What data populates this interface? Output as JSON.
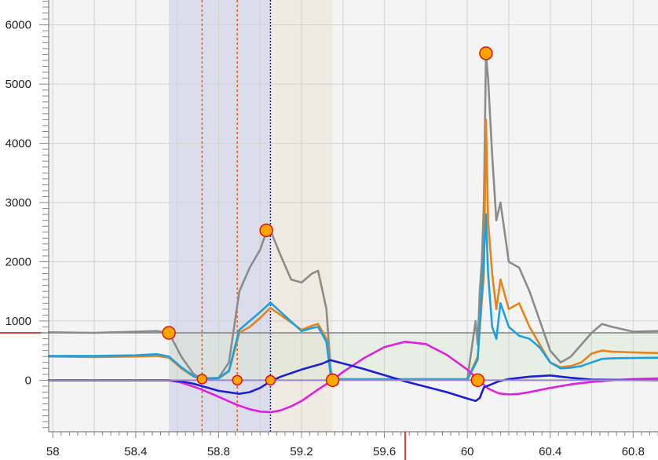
{
  "chart_data": {
    "type": "line",
    "title": "",
    "xlabel": "",
    "ylabel": "",
    "xlim": [
      57.98,
      60.92
    ],
    "ylim": [
      -870,
      6420
    ],
    "grid": true,
    "legend": "none",
    "x_ticks": [
      58,
      58.2,
      58.4,
      58.6,
      58.8,
      59,
      59.2,
      59.4,
      59.6,
      59.8,
      60,
      60.2,
      60.4,
      60.6,
      60.8
    ],
    "x_tick_labels": [
      {
        "x": 58,
        "label": "58"
      },
      {
        "x": 58.4,
        "label": "58.4"
      },
      {
        "x": 58.8,
        "label": "58.8"
      },
      {
        "x": 59.2,
        "label": "59.2"
      },
      {
        "x": 59.6,
        "label": "59.6"
      },
      {
        "x": 60,
        "label": "60"
      },
      {
        "x": 60.4,
        "label": "60.4"
      },
      {
        "x": 60.8,
        "label": "60.8"
      }
    ],
    "y_ticks": [
      0,
      1000,
      2000,
      3000,
      4000,
      5000,
      6000
    ],
    "y_tick_labels": [
      {
        "y": 0,
        "label": "0"
      },
      {
        "y": 1000,
        "label": "1000"
      },
      {
        "y": 2000,
        "label": "2000"
      },
      {
        "y": 3000,
        "label": "3000"
      },
      {
        "y": 4000,
        "label": "4000"
      },
      {
        "y": 5000,
        "label": "5000"
      },
      {
        "y": 6000,
        "label": "6000"
      }
    ],
    "regions": [
      {
        "x0": 58.56,
        "x1": 59.05,
        "y0": -870,
        "y1": 6420,
        "color": "#c9cbe6",
        "opacity": 0.55
      },
      {
        "x0": 59.05,
        "x1": 59.35,
        "y0": -870,
        "y1": 6420,
        "color": "#ece3d6",
        "opacity": 0.6
      },
      {
        "x0": 58.56,
        "x1": 60.92,
        "y0": 0,
        "y1": 800,
        "color": "#d6e6cf",
        "opacity": 0.45
      }
    ],
    "vlines": [
      {
        "x": 58.72,
        "color": "#e06020",
        "dash": "3,3"
      },
      {
        "x": 58.89,
        "color": "#e06020",
        "dash": "3,3"
      },
      {
        "x": 59.05,
        "color": "#1a237e",
        "dash": "2,2"
      }
    ],
    "hline": {
      "y": 800,
      "color": "#e04040"
    },
    "x_marker": {
      "x": 59.7,
      "color": "#e04040"
    },
    "series": [
      {
        "color": "#8c8c8c",
        "x": [
          57.98,
          58.2,
          58.4,
          58.5,
          58.56,
          58.62,
          58.68,
          58.72,
          58.8,
          58.85,
          58.9,
          58.95,
          59.0,
          59.03,
          59.05,
          59.1,
          59.15,
          59.2,
          59.25,
          59.28,
          59.32,
          59.34,
          59.35,
          59.6,
          60.0,
          60.04,
          60.05,
          60.06,
          60.07,
          60.08,
          60.09,
          60.1,
          60.12,
          60.14,
          60.16,
          60.2,
          60.25,
          60.3,
          60.35,
          60.4,
          60.45,
          60.5,
          60.55,
          60.6,
          60.65,
          60.7,
          60.8,
          60.92
        ],
        "y": [
          810,
          800,
          820,
          830,
          800,
          400,
          100,
          30,
          40,
          300,
          1500,
          1900,
          2200,
          2500,
          2530,
          2100,
          1700,
          1650,
          1800,
          1850,
          1200,
          200,
          20,
          20,
          20,
          1000,
          600,
          1500,
          2000,
          3000,
          5500,
          5100,
          3800,
          2700,
          3000,
          2000,
          1900,
          1500,
          1000,
          500,
          300,
          400,
          600,
          800,
          950,
          900,
          820,
          830
        ]
      },
      {
        "color": "#e8831b",
        "x": [
          57.98,
          58.2,
          58.4,
          58.5,
          58.56,
          58.62,
          58.68,
          58.72,
          58.8,
          58.85,
          58.9,
          58.95,
          59.0,
          59.05,
          59.1,
          59.2,
          59.25,
          59.28,
          59.32,
          59.34,
          59.35,
          60.0,
          60.05,
          60.08,
          60.09,
          60.1,
          60.12,
          60.14,
          60.16,
          60.2,
          60.25,
          60.3,
          60.35,
          60.4,
          60.45,
          60.5,
          60.55,
          60.6,
          60.65,
          60.7,
          60.8,
          60.92
        ],
        "y": [
          400,
          390,
          400,
          410,
          380,
          200,
          60,
          20,
          30,
          150,
          800,
          900,
          1050,
          1220,
          1100,
          850,
          920,
          950,
          700,
          100,
          10,
          10,
          400,
          1800,
          4400,
          2700,
          1800,
          1200,
          1700,
          1200,
          1300,
          900,
          600,
          300,
          220,
          240,
          300,
          450,
          500,
          480,
          470,
          460
        ]
      },
      {
        "color": "#1ba1e2",
        "x": [
          57.98,
          58.2,
          58.4,
          58.5,
          58.56,
          58.62,
          58.68,
          58.72,
          58.8,
          58.85,
          58.9,
          58.95,
          59.0,
          59.05,
          59.1,
          59.2,
          59.25,
          59.28,
          59.32,
          59.34,
          59.35,
          60.0,
          60.05,
          60.08,
          60.09,
          60.1,
          60.12,
          60.14,
          60.16,
          60.2,
          60.25,
          60.3,
          60.35,
          60.4,
          60.45,
          60.5,
          60.55,
          60.6,
          60.65,
          60.7,
          60.8,
          60.92
        ],
        "y": [
          410,
          410,
          420,
          440,
          400,
          220,
          70,
          25,
          35,
          160,
          850,
          1000,
          1150,
          1310,
          1150,
          830,
          880,
          900,
          650,
          100,
          10,
          10,
          350,
          2100,
          2800,
          1800,
          900,
          700,
          1300,
          900,
          750,
          700,
          550,
          300,
          200,
          210,
          240,
          300,
          360,
          370,
          375,
          380
        ]
      },
      {
        "color": "#e020e0",
        "x": [
          57.98,
          58.5,
          58.56,
          58.62,
          58.68,
          58.72,
          58.8,
          58.89,
          58.95,
          59.0,
          59.05,
          59.1,
          59.15,
          59.2,
          59.25,
          59.3,
          59.35,
          59.4,
          59.5,
          59.6,
          59.7,
          59.8,
          59.9,
          60.0,
          60.05,
          60.1,
          60.15,
          60.2,
          60.25,
          60.3,
          60.4,
          60.5,
          60.6,
          60.7,
          60.8,
          60.92
        ],
        "y": [
          0,
          0,
          0,
          -40,
          -110,
          -160,
          -280,
          -420,
          -490,
          -530,
          -540,
          -510,
          -440,
          -350,
          -230,
          -110,
          0,
          140,
          370,
          560,
          650,
          610,
          430,
          180,
          20,
          -140,
          -220,
          -240,
          -230,
          -200,
          -130,
          -70,
          -30,
          0,
          20,
          30
        ]
      },
      {
        "color": "#1c1fd6",
        "x": [
          57.98,
          58.5,
          58.56,
          58.62,
          58.68,
          58.72,
          58.8,
          58.9,
          58.95,
          59.0,
          59.05,
          59.1,
          59.2,
          59.3,
          59.34,
          59.35,
          59.5,
          59.7,
          59.9,
          60.0,
          60.04,
          60.06,
          60.08,
          60.15,
          60.2,
          60.3,
          60.4,
          60.5,
          60.6,
          60.92
        ],
        "y": [
          0,
          0,
          0,
          -20,
          -60,
          -100,
          -180,
          -230,
          -200,
          -130,
          -20,
          60,
          180,
          280,
          340,
          330,
          190,
          -20,
          -200,
          -310,
          -350,
          -300,
          -120,
          -20,
          20,
          60,
          80,
          40,
          10,
          0
        ]
      }
    ],
    "points": [
      {
        "x": 58.56,
        "y": 800,
        "size": "large"
      },
      {
        "x": 58.72,
        "y": 20,
        "size": "small"
      },
      {
        "x": 58.89,
        "y": 0,
        "size": "small"
      },
      {
        "x": 59.03,
        "y": 2530,
        "size": "large"
      },
      {
        "x": 59.05,
        "y": 0,
        "size": "small"
      },
      {
        "x": 59.35,
        "y": 0,
        "size": "large"
      },
      {
        "x": 60.05,
        "y": 0,
        "size": "large"
      },
      {
        "x": 60.09,
        "y": 5520,
        "size": "large"
      }
    ],
    "point_fill": "#ffa500",
    "point_stroke": "#e01010",
    "grid_color": "#d2d2d2",
    "plot_background": "#f4f4f4"
  }
}
